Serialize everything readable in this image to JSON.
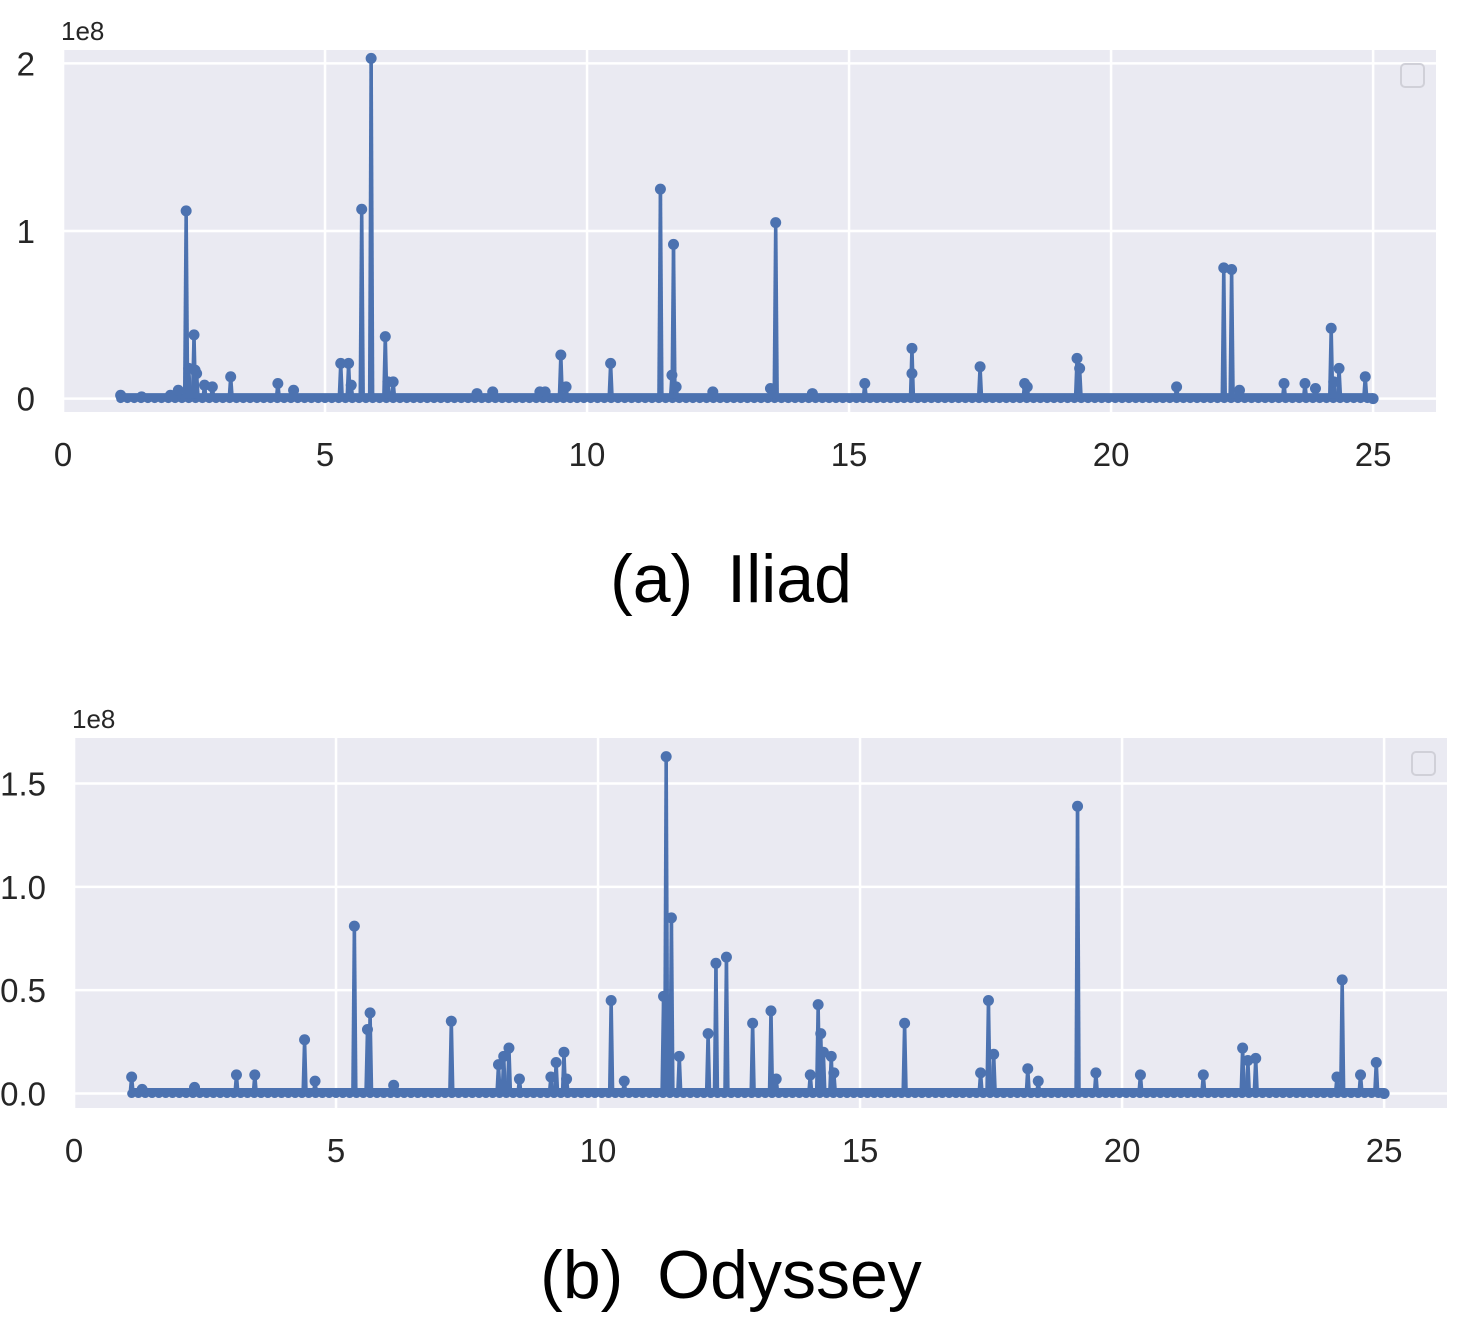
{
  "chart_data": [
    {
      "type": "line",
      "caption_tag": "(a)",
      "caption_title": "Iliad",
      "exponent_label": "1e8",
      "xlim": [
        0,
        26.2
      ],
      "ylim": [
        -0.08,
        2.08
      ],
      "x_ticks": [
        0,
        5,
        10,
        15,
        20,
        25
      ],
      "x_tick_labels": [
        "0",
        "5",
        "10",
        "15",
        "20",
        "25"
      ],
      "y_ticks": [
        0,
        1,
        2
      ],
      "y_tick_labels": [
        "0",
        "1",
        "2"
      ],
      "legend": "top-right",
      "grid": true,
      "colors": {
        "background": "#eaeaf2",
        "grid": "#ffffff",
        "series": "#4c72b0"
      },
      "series": [
        {
          "name": "",
          "points": [
            [
              1.1,
              0.02
            ],
            [
              1.5,
              0.01
            ],
            [
              2.05,
              0.02
            ],
            [
              2.2,
              0.05
            ],
            [
              2.35,
              1.12
            ],
            [
              2.4,
              0.18
            ],
            [
              2.5,
              0.38
            ],
            [
              2.52,
              0.17
            ],
            [
              2.55,
              0.15
            ],
            [
              2.7,
              0.08
            ],
            [
              2.85,
              0.07
            ],
            [
              3.2,
              0.13
            ],
            [
              4.1,
              0.09
            ],
            [
              4.4,
              0.05
            ],
            [
              5.3,
              0.21
            ],
            [
              5.45,
              0.21
            ],
            [
              5.5,
              0.08
            ],
            [
              5.7,
              1.13
            ],
            [
              5.88,
              2.03
            ],
            [
              6.15,
              0.37
            ],
            [
              6.2,
              0.1
            ],
            [
              6.3,
              0.1
            ],
            [
              7.9,
              0.03
            ],
            [
              8.2,
              0.04
            ],
            [
              9.1,
              0.04
            ],
            [
              9.2,
              0.04
            ],
            [
              9.5,
              0.26
            ],
            [
              9.6,
              0.07
            ],
            [
              10.45,
              0.21
            ],
            [
              11.4,
              1.25
            ],
            [
              11.62,
              0.14
            ],
            [
              11.65,
              0.92
            ],
            [
              11.7,
              0.07
            ],
            [
              12.4,
              0.04
            ],
            [
              13.5,
              0.06
            ],
            [
              13.6,
              1.05
            ],
            [
              14.3,
              0.03
            ],
            [
              15.3,
              0.09
            ],
            [
              16.2,
              0.3
            ],
            [
              16.2,
              0.15
            ],
            [
              17.5,
              0.19
            ],
            [
              18.35,
              0.09
            ],
            [
              18.4,
              0.07
            ],
            [
              19.35,
              0.24
            ],
            [
              19.4,
              0.18
            ],
            [
              21.25,
              0.07
            ],
            [
              22.15,
              0.78
            ],
            [
              22.3,
              0.77
            ],
            [
              22.45,
              0.05
            ],
            [
              23.3,
              0.09
            ],
            [
              23.7,
              0.09
            ],
            [
              23.9,
              0.06
            ],
            [
              24.2,
              0.42
            ],
            [
              24.25,
              0.1
            ],
            [
              24.35,
              0.18
            ],
            [
              24.85,
              0.13
            ],
            [
              25.0,
              0.0
            ]
          ]
        }
      ]
    },
    {
      "type": "line",
      "caption_tag": "(b)",
      "caption_title": "Odyssey",
      "exponent_label": "1e8",
      "xlim": [
        0,
        26.2
      ],
      "ylim": [
        -0.07,
        1.72
      ],
      "x_ticks": [
        0,
        5,
        10,
        15,
        20,
        25
      ],
      "x_tick_labels": [
        "0",
        "5",
        "10",
        "15",
        "20",
        "25"
      ],
      "y_ticks": [
        0.0,
        0.5,
        1.0,
        1.5
      ],
      "y_tick_labels": [
        "0.0",
        "0.5",
        "1.0",
        "1.5"
      ],
      "legend": "top-right",
      "grid": true,
      "colors": {
        "background": "#eaeaf2",
        "grid": "#ffffff",
        "series": "#4c72b0"
      },
      "series": [
        {
          "name": "",
          "points": [
            [
              1.1,
              0.08
            ],
            [
              1.3,
              0.02
            ],
            [
              2.3,
              0.03
            ],
            [
              3.1,
              0.09
            ],
            [
              3.45,
              0.09
            ],
            [
              4.4,
              0.26
            ],
            [
              4.6,
              0.06
            ],
            [
              5.35,
              0.81
            ],
            [
              5.6,
              0.31
            ],
            [
              5.65,
              0.39
            ],
            [
              6.1,
              0.04
            ],
            [
              7.2,
              0.35
            ],
            [
              8.1,
              0.14
            ],
            [
              8.2,
              0.18
            ],
            [
              8.3,
              0.22
            ],
            [
              8.5,
              0.07
            ],
            [
              9.1,
              0.08
            ],
            [
              9.2,
              0.15
            ],
            [
              9.35,
              0.2
            ],
            [
              9.4,
              0.07
            ],
            [
              10.25,
              0.45
            ],
            [
              10.5,
              0.06
            ],
            [
              11.25,
              0.47
            ],
            [
              11.3,
              1.63
            ],
            [
              11.4,
              0.85
            ],
            [
              11.55,
              0.18
            ],
            [
              12.1,
              0.29
            ],
            [
              12.25,
              0.63
            ],
            [
              12.45,
              0.66
            ],
            [
              12.95,
              0.34
            ],
            [
              13.3,
              0.4
            ],
            [
              13.4,
              0.07
            ],
            [
              14.05,
              0.09
            ],
            [
              14.2,
              0.43
            ],
            [
              14.25,
              0.29
            ],
            [
              14.3,
              0.2
            ],
            [
              14.45,
              0.18
            ],
            [
              14.5,
              0.1
            ],
            [
              15.85,
              0.34
            ],
            [
              17.3,
              0.1
            ],
            [
              17.45,
              0.45
            ],
            [
              17.55,
              0.19
            ],
            [
              18.2,
              0.12
            ],
            [
              18.4,
              0.06
            ],
            [
              19.15,
              1.39
            ],
            [
              19.5,
              0.1
            ],
            [
              20.35,
              0.09
            ],
            [
              21.55,
              0.09
            ],
            [
              22.3,
              0.22
            ],
            [
              22.4,
              0.16
            ],
            [
              22.55,
              0.17
            ],
            [
              24.1,
              0.08
            ],
            [
              24.2,
              0.55
            ],
            [
              24.55,
              0.09
            ],
            [
              24.85,
              0.15
            ],
            [
              25.0,
              0.0
            ]
          ]
        }
      ]
    }
  ]
}
